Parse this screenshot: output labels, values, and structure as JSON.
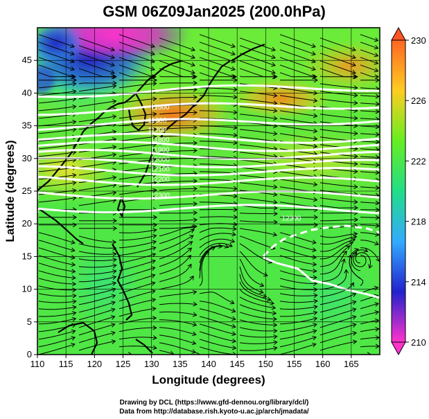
{
  "title": "GSM 06Z09Jan2025 (200.0hPa)",
  "xlabel": "Longitude (degrees)",
  "ylabel": "Latitude  (degrees)",
  "credits": [
    "Drawing by DCL (https://www.gfd-dennou.org/library/dcl/)",
    "Data from http://database.rish.kyoto-u.ac.jp/arch/jmadata/"
  ],
  "chart_data": {
    "type": "heatmap",
    "xlim": [
      110,
      170
    ],
    "ylim": [
      0,
      50
    ],
    "x_ticks": [
      110,
      115,
      120,
      125,
      130,
      135,
      140,
      145,
      150,
      155,
      160,
      165
    ],
    "y_ticks": [
      0,
      5,
      10,
      15,
      20,
      25,
      30,
      35,
      40,
      45
    ],
    "grid": true,
    "colorbar": {
      "range": [
        210,
        230
      ],
      "ticks": [
        210,
        214,
        218,
        222,
        226,
        230
      ],
      "colors": [
        "#ff33cc",
        "#2222cc",
        "#33aaff",
        "#22dd88",
        "#66ee22",
        "#ffcc22",
        "#ff6622"
      ]
    },
    "contour_labels": [
      {
        "text": "11500",
        "lon": 131.5,
        "lat": 37.5
      },
      {
        "text": "11600",
        "lon": 131.0,
        "lat": 35.5
      },
      {
        "text": "11700",
        "lon": 131.0,
        "lat": 34.0
      },
      {
        "text": "11800",
        "lon": 131.5,
        "lat": 32.5
      },
      {
        "text": "11900",
        "lon": 131.5,
        "lat": 31.0
      },
      {
        "text": "12000",
        "lon": 131.5,
        "lat": 29.5
      },
      {
        "text": "12100",
        "lon": 131.5,
        "lat": 28.0
      },
      {
        "text": "12200",
        "lon": 131.5,
        "lat": 26.5
      },
      {
        "text": "12300",
        "lon": 131.5,
        "lat": 24.0
      },
      {
        "text": "12300",
        "lon": 154.5,
        "lat": 20.5
      }
    ]
  }
}
